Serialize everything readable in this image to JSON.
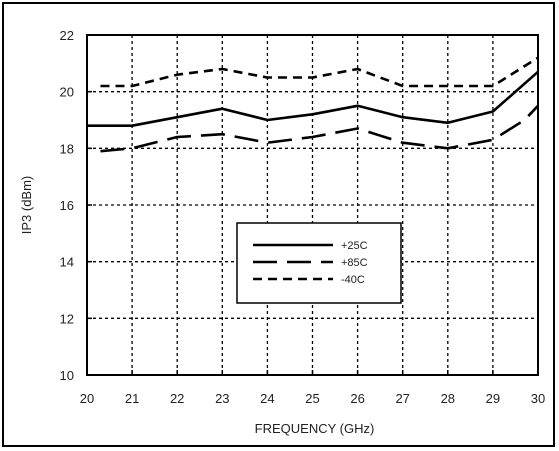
{
  "chart_data": {
    "type": "line",
    "title": "",
    "xlabel": "FREQUENCY (GHz)",
    "ylabel": "IP3 (dBm)",
    "xlim": [
      20,
      30
    ],
    "ylim": [
      10,
      22
    ],
    "xticks": [
      20,
      21,
      22,
      23,
      24,
      25,
      26,
      27,
      28,
      29,
      30
    ],
    "yticks": [
      10,
      12,
      14,
      16,
      18,
      20,
      22
    ],
    "grid": true,
    "legend_position": "center",
    "series": [
      {
        "name": "+25C",
        "line_style": "solid",
        "color": "#000000",
        "x": [
          20,
          21,
          22,
          23,
          24,
          25,
          26,
          27,
          28,
          29,
          30
        ],
        "y": [
          18.8,
          18.8,
          19.1,
          19.4,
          19.0,
          19.2,
          19.5,
          19.1,
          18.9,
          19.3,
          20.7
        ]
      },
      {
        "name": "+85C",
        "line_style": "long-dash",
        "color": "#000000",
        "x": [
          20.3,
          21,
          22,
          23,
          24,
          25,
          26,
          27,
          28,
          29,
          29.7,
          30
        ],
        "y": [
          17.9,
          18.0,
          18.4,
          18.5,
          18.2,
          18.4,
          18.7,
          18.2,
          18.0,
          18.3,
          19.0,
          19.5
        ]
      },
      {
        "name": "-40C",
        "line_style": "short-dash",
        "color": "#000000",
        "x": [
          20.3,
          21,
          22,
          23,
          24,
          25,
          26,
          27,
          28,
          29,
          30
        ],
        "y": [
          20.2,
          20.2,
          20.6,
          20.8,
          20.5,
          20.5,
          20.8,
          20.2,
          20.2,
          20.2,
          21.2
        ]
      }
    ]
  }
}
